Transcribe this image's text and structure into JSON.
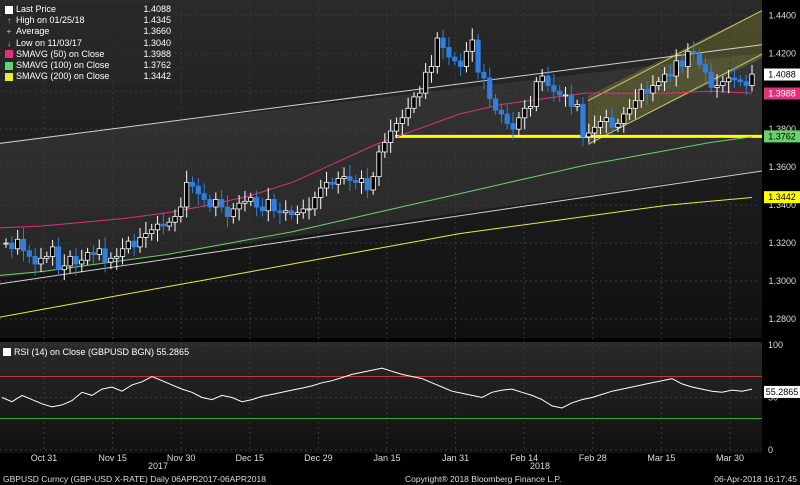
{
  "legend": {
    "last_price_label": "Last Price",
    "last_price_value": "1.4088",
    "high_label": "High on 01/25/18",
    "high_value": "1.4345",
    "average_label": "Average",
    "average_value": "1.3660",
    "low_label": "Low on 11/03/17",
    "low_value": "1.3040",
    "sma50_label": "SMAVG (50) on Close",
    "sma50_value": "1.3988",
    "sma100_label": "SMAVG (100) on Close",
    "sma100_value": "1.3762",
    "sma200_label": "SMAVG (200) on Close",
    "sma200_value": "1.3442"
  },
  "rsi_label": "RSI (14) on Close (GBPUSD BGN) 55.2865",
  "footer": {
    "left": "GBPUSD Curncy (GBP-USD X-RATE)  Daily 06APR2017-06APR2018",
    "center": "Copyright® 2018 Bloomberg Finance L.P.",
    "right": "06-Apr-2018 16:17:45"
  },
  "years": [
    "2017",
    "2018"
  ],
  "colors": {
    "candle_up": "#ffffff",
    "candle_down": "#2e7fe0",
    "sma50": "#e0307a",
    "sma100": "#6ad06a",
    "sma200": "#e8e84a",
    "support": "#ffff00",
    "channel": "#d0d0d0",
    "rsi": "#ffffff",
    "rsi_overbought": "#cc3333",
    "rsi_oversold": "#33aa33"
  },
  "chart_data": [
    {
      "type": "candlestick",
      "title": "",
      "x_ticks": [
        "Oct 31",
        "Nov 15",
        "Nov 30",
        "Dec 15",
        "Dec 29",
        "Jan 15",
        "Jan 31",
        "Feb 14",
        "Feb 28",
        "Mar 15",
        "Mar 30"
      ],
      "y_ticks": [
        "1.2800",
        "1.3000",
        "1.3200",
        "1.3400",
        "1.3600",
        "1.3800",
        "1.4000",
        "1.4200",
        "1.4400"
      ],
      "ylim": [
        1.27,
        1.447
      ],
      "close_series": [
        1.32,
        1.317,
        1.322,
        1.316,
        1.313,
        1.309,
        1.312,
        1.313,
        1.318,
        1.306,
        1.308,
        1.313,
        1.309,
        1.311,
        1.315,
        1.314,
        1.317,
        1.31,
        1.312,
        1.313,
        1.317,
        1.321,
        1.318,
        1.323,
        1.325,
        1.327,
        1.33,
        1.329,
        1.331,
        1.334,
        1.339,
        1.352,
        1.35,
        1.346,
        1.343,
        1.339,
        1.343,
        1.339,
        1.334,
        1.338,
        1.341,
        1.342,
        1.344,
        1.339,
        1.337,
        1.343,
        1.337,
        1.336,
        1.337,
        1.335,
        1.336,
        1.338,
        1.338,
        1.344,
        1.349,
        1.352,
        1.351,
        1.354,
        1.355,
        1.353,
        1.352,
        1.354,
        1.348,
        1.355,
        1.368,
        1.373,
        1.379,
        1.383,
        1.386,
        1.391,
        1.397,
        1.399,
        1.41,
        1.413,
        1.428,
        1.423,
        1.418,
        1.416,
        1.413,
        1.421,
        1.427,
        1.41,
        1.407,
        1.396,
        1.39,
        1.388,
        1.383,
        1.38,
        1.386,
        1.391,
        1.392,
        1.405,
        1.408,
        1.403,
        1.4,
        1.398,
        1.398,
        1.392,
        1.393,
        1.376,
        1.378,
        1.381,
        1.384,
        1.386,
        1.381,
        1.383,
        1.388,
        1.391,
        1.395,
        1.401,
        1.399,
        1.403,
        1.405,
        1.409,
        1.408,
        1.416,
        1.413,
        1.421,
        1.42,
        1.414,
        1.41,
        1.402,
        1.403,
        1.405,
        1.407,
        1.406,
        1.405,
        1.403,
        1.409
      ],
      "series": [
        {
          "name": "SMAVG (50) on Close",
          "values": [
            1.328,
            1.329,
            1.331,
            1.333,
            1.336,
            1.34,
            1.345,
            1.352,
            1.362,
            1.372,
            1.38,
            1.388,
            1.393,
            1.396,
            1.399,
            1.399,
            1.399,
            1.4,
            1.399
          ]
        },
        {
          "name": "SMAVG (100) on Close",
          "values": [
            1.303,
            1.305,
            1.308,
            1.311,
            1.314,
            1.318,
            1.322,
            1.326,
            1.331,
            1.336,
            1.341,
            1.346,
            1.351,
            1.356,
            1.361,
            1.365,
            1.369,
            1.373,
            1.376
          ]
        },
        {
          "name": "SMAVG (200) on Close",
          "values": [
            1.281,
            1.285,
            1.289,
            1.293,
            1.297,
            1.301,
            1.305,
            1.309,
            1.313,
            1.317,
            1.321,
            1.325,
            1.328,
            1.331,
            1.334,
            1.337,
            1.34,
            1.342,
            1.344
          ]
        }
      ],
      "support_level": 1.3762,
      "last_value_labels": [
        "1.4088",
        "1.3988",
        "1.3762",
        "1.3442"
      ]
    },
    {
      "type": "line",
      "title": "RSI (14) on Close (GBPUSD BGN) 55.2865",
      "y_ticks": [
        "100",
        "50",
        "0"
      ],
      "ylim": [
        0,
        100
      ],
      "levels": {
        "overbought": 70,
        "oversold": 30
      },
      "last_value_label": "55.2865",
      "values": [
        50,
        46,
        52,
        48,
        44,
        41,
        43,
        47,
        55,
        52,
        58,
        60,
        56,
        62,
        65,
        70,
        66,
        62,
        58,
        55,
        50,
        48,
        52,
        50,
        46,
        48,
        51,
        53,
        55,
        57,
        59,
        61,
        64,
        66,
        69,
        72,
        74,
        76,
        78,
        75,
        72,
        70,
        68,
        64,
        60,
        56,
        54,
        52,
        50,
        55,
        57,
        58,
        55,
        52,
        48,
        42,
        40,
        45,
        48,
        50,
        53,
        56,
        58,
        60,
        62,
        64,
        66,
        68,
        63,
        60,
        58,
        56,
        55,
        57,
        56,
        58
      ]
    }
  ]
}
